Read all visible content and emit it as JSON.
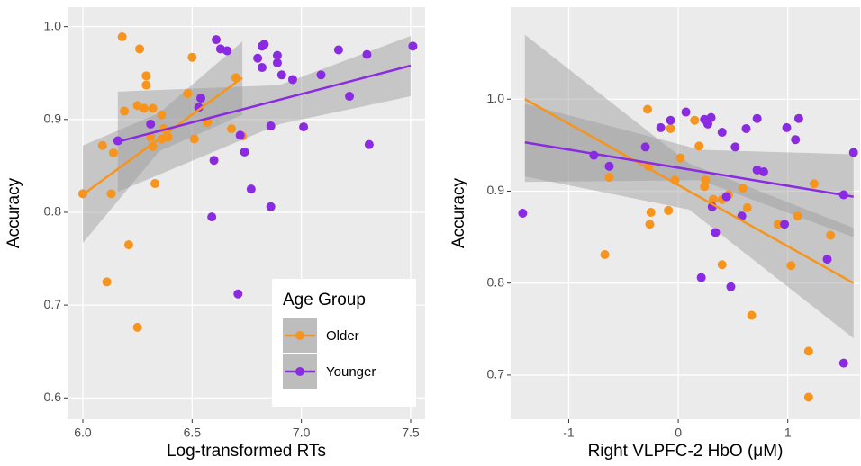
{
  "chart_data": [
    {
      "type": "scatter",
      "x_label": "Log-transformed RTs",
      "y_label": "Accuracy",
      "xlim": [
        5.93,
        7.566
      ],
      "ylim": [
        0.577,
        1.021
      ],
      "xticks": [
        {
          "value": 6.0,
          "label": "6.0"
        },
        {
          "value": 6.5,
          "label": "6.5"
        },
        {
          "value": 7.0,
          "label": "7.0"
        },
        {
          "value": 7.5,
          "label": "7.5"
        }
      ],
      "yticks": [
        0.6,
        0.7,
        0.8,
        0.9,
        {
          "value": 1.0,
          "label": "1.0"
        }
      ],
      "grid": true,
      "legend": "bottom-right",
      "legend_title": "Age Group",
      "series": [
        {
          "name": "Older",
          "color": "#f7941d",
          "x": [
            6.18,
            6.26,
            6.5,
            6.29,
            6.29,
            6.0,
            6.09,
            6.14,
            6.13,
            6.19,
            6.25,
            6.28,
            6.32,
            6.31,
            6.32,
            6.33,
            6.36,
            6.37,
            6.36,
            6.39,
            6.48,
            6.51,
            6.57,
            6.68,
            6.7,
            6.73,
            6.21,
            6.11,
            6.25
          ],
          "values": [
            0.989,
            0.976,
            0.967,
            0.947,
            0.937,
            0.82,
            0.872,
            0.864,
            0.82,
            0.909,
            0.915,
            0.912,
            0.912,
            0.881,
            0.871,
            0.831,
            0.905,
            0.89,
            0.879,
            0.881,
            0.928,
            0.879,
            0.897,
            0.89,
            0.945,
            0.882,
            0.765,
            0.725,
            0.676
          ],
          "fit": {
            "x": [
              6.0,
              6.73
            ],
            "y": [
              0.819,
              0.945
            ]
          },
          "band": {
            "x": [
              6.0,
              6.35,
              6.73
            ],
            "lower": [
              0.767,
              0.866,
              0.905
            ],
            "upper": [
              0.872,
              0.907,
              0.984
            ]
          }
        },
        {
          "name": "Younger",
          "color": "#8a2be2",
          "x": [
            6.16,
            6.61,
            6.63,
            6.66,
            6.53,
            6.54,
            6.6,
            6.59,
            6.71,
            6.72,
            6.74,
            6.77,
            6.86,
            6.8,
            6.82,
            6.83,
            6.82,
            6.89,
            6.89,
            6.86,
            6.91,
            6.96,
            7.01,
            7.09,
            7.17,
            7.22,
            7.3,
            7.31,
            7.51,
            6.31
          ],
          "values": [
            0.877,
            0.986,
            0.976,
            0.974,
            0.913,
            0.923,
            0.856,
            0.795,
            0.712,
            0.883,
            0.865,
            0.825,
            0.806,
            0.966,
            0.979,
            0.981,
            0.956,
            0.969,
            0.961,
            0.893,
            0.948,
            0.943,
            0.892,
            0.948,
            0.975,
            0.925,
            0.97,
            0.873,
            0.979,
            0.895
          ],
          "fit": {
            "x": [
              6.16,
              7.5
            ],
            "y": [
              0.876,
              0.958
            ]
          },
          "band": {
            "x": [
              6.16,
              6.9,
              7.5
            ],
            "lower": [
              0.822,
              0.895,
              0.925
            ],
            "upper": [
              0.93,
              0.937,
              0.99
            ]
          }
        }
      ]
    },
    {
      "type": "scatter",
      "x_label": "Right VLPFC-2 HbO (μM)",
      "y_label": "Accuracy",
      "xlim": [
        -1.53,
        1.66
      ],
      "ylim": [
        0.652,
        1.1
      ],
      "xticks": [
        -1,
        0,
        1
      ],
      "yticks": [
        0.7,
        0.8,
        0.9,
        {
          "value": 1.0,
          "label": "1.0"
        }
      ],
      "grid": true,
      "series": [
        {
          "name": "Older",
          "color": "#f7941d",
          "x": [
            -0.28,
            0.15,
            -0.07,
            0.19,
            -0.25,
            -0.26,
            -0.09,
            -0.67,
            0.02,
            -0.03,
            -0.27,
            -0.63,
            0.25,
            0.24,
            0.32,
            0.4,
            0.46,
            0.59,
            0.63,
            0.91,
            1.03,
            1.09,
            1.24,
            1.39,
            0.4,
            0.67,
            1.19,
            1.19
          ],
          "values": [
            0.989,
            0.977,
            0.968,
            0.949,
            0.877,
            0.864,
            0.879,
            0.831,
            0.936,
            0.912,
            0.927,
            0.915,
            0.912,
            0.905,
            0.891,
            0.891,
            0.896,
            0.903,
            0.882,
            0.864,
            0.819,
            0.873,
            0.908,
            0.852,
            0.82,
            0.765,
            0.726,
            0.676
          ],
          "fit": {
            "x": [
              -1.4,
              1.6
            ],
            "y": [
              1.0,
              0.8
            ]
          },
          "band": {
            "x": [
              -1.4,
              0.1,
              1.6
            ],
            "lower": [
              0.916,
              0.88,
              0.74
            ],
            "upper": [
              1.07,
              0.93,
              0.86
            ]
          }
        },
        {
          "name": "Younger",
          "color": "#8a2be2",
          "x": [
            -1.42,
            -0.77,
            -0.63,
            -0.3,
            -0.16,
            -0.07,
            0.07,
            0.24,
            0.27,
            0.3,
            0.4,
            0.52,
            0.62,
            0.72,
            0.72,
            0.78,
            0.99,
            1.07,
            1.1,
            1.6,
            1.51,
            1.36,
            1.51,
            0.97,
            0.58,
            0.44,
            0.31,
            0.34,
            0.21,
            0.48
          ],
          "values": [
            0.876,
            0.939,
            0.927,
            0.948,
            0.969,
            0.977,
            0.986,
            0.978,
            0.973,
            0.98,
            0.964,
            0.948,
            0.968,
            0.979,
            0.923,
            0.921,
            0.969,
            0.956,
            0.979,
            0.942,
            0.896,
            0.826,
            0.713,
            0.864,
            0.873,
            0.894,
            0.883,
            0.855,
            0.806,
            0.796
          ],
          "fit": {
            "x": [
              -1.4,
              1.6
            ],
            "y": [
              0.953,
              0.894
            ]
          },
          "band": {
            "x": [
              -1.4,
              0.2,
              1.6
            ],
            "lower": [
              0.91,
              0.912,
              0.85
            ],
            "upper": [
              0.995,
              0.945,
              0.94
            ]
          }
        }
      ]
    }
  ]
}
